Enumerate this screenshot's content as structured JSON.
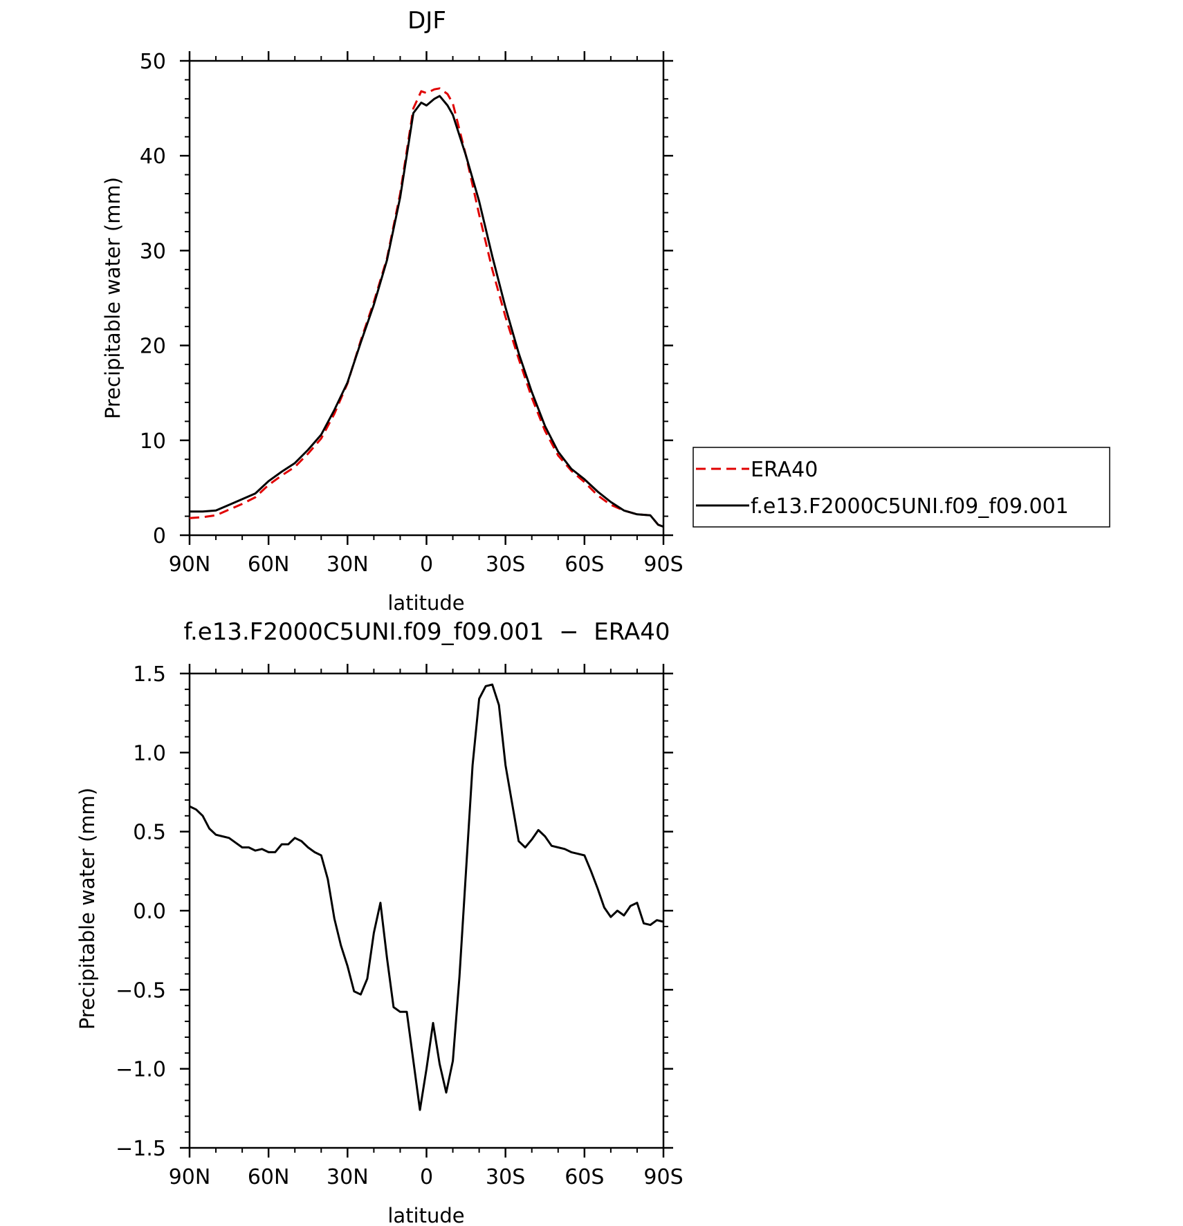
{
  "chart_data": [
    {
      "type": "line",
      "title": "DJF",
      "xlabel": "latitude",
      "ylabel": "Precipitable water (mm)",
      "xlim": [
        90,
        -90
      ],
      "ylim": [
        0,
        50
      ],
      "x_ticks": [
        90,
        60,
        30,
        0,
        -30,
        -60,
        -90
      ],
      "x_tick_labels": [
        "90N",
        "60N",
        "30N",
        "0",
        "30S",
        "60S",
        "90S"
      ],
      "y_ticks": [
        0,
        10,
        20,
        30,
        40,
        50
      ],
      "y_tick_labels": [
        "0",
        "10",
        "20",
        "30",
        "40",
        "50"
      ],
      "legend_position": "right",
      "series": [
        {
          "name": "ERA40",
          "color": "#e00000",
          "dash": "dashed",
          "x": [
            90,
            85,
            80,
            75,
            70,
            65,
            60,
            55,
            50,
            45,
            40,
            35,
            30,
            25,
            20,
            15,
            10,
            5,
            2,
            0,
            -3,
            -5,
            -8,
            -10,
            -15,
            -20,
            -25,
            -30,
            -35,
            -40,
            -45,
            -50,
            -55,
            -60,
            -65,
            -70,
            -75,
            -80,
            -85,
            -88,
            -90
          ],
          "y": [
            1.8,
            1.9,
            2.1,
            2.7,
            3.3,
            4.0,
            5.3,
            6.3,
            7.2,
            8.6,
            10.2,
            12.8,
            16.0,
            20.5,
            24.6,
            29.2,
            36.0,
            45.0,
            46.8,
            46.6,
            47.0,
            47.1,
            46.5,
            45.5,
            40.0,
            33.8,
            28.0,
            23.0,
            18.6,
            14.5,
            11.0,
            8.4,
            6.8,
            5.6,
            4.2,
            3.2,
            2.6,
            2.2,
            2.1,
            1.1,
            0.9
          ]
        },
        {
          "name": "f.e13.F2000C5UNI.f09_f09.001",
          "color": "#000000",
          "dash": "solid",
          "x": [
            90,
            85,
            80,
            75,
            70,
            65,
            60,
            55,
            50,
            45,
            40,
            35,
            30,
            25,
            20,
            15,
            10,
            5,
            2,
            0,
            -3,
            -5,
            -8,
            -10,
            -15,
            -20,
            -25,
            -30,
            -35,
            -40,
            -45,
            -50,
            -55,
            -60,
            -65,
            -70,
            -75,
            -80,
            -85,
            -88,
            -90
          ],
          "y": [
            2.5,
            2.5,
            2.6,
            3.2,
            3.8,
            4.4,
            5.7,
            6.7,
            7.6,
            9.0,
            10.6,
            13.2,
            16.1,
            20.3,
            24.3,
            29.0,
            35.6,
            44.5,
            45.6,
            45.3,
            46.0,
            46.3,
            45.3,
            44.3,
            40.0,
            35.2,
            29.4,
            24.0,
            19.2,
            15.1,
            11.5,
            8.8,
            7.0,
            5.9,
            4.6,
            3.5,
            2.6,
            2.2,
            2.1,
            1.1,
            0.9
          ]
        }
      ]
    },
    {
      "type": "line",
      "title": "f.e13.F2000C5UNI.f09_f09.001  −  ERA40",
      "xlabel": "latitude",
      "ylabel": "Precipitable water (mm)",
      "xlim": [
        90,
        -90
      ],
      "ylim": [
        -1.5,
        1.5
      ],
      "x_ticks": [
        90,
        60,
        30,
        0,
        -30,
        -60,
        -90
      ],
      "x_tick_labels": [
        "90N",
        "60N",
        "30N",
        "0",
        "30S",
        "60S",
        "90S"
      ],
      "y_ticks": [
        1.5,
        1.0,
        0.5,
        0.0,
        -0.5,
        -1.0,
        -1.5
      ],
      "y_tick_labels": [
        "1.5",
        "1.0",
        "0.5",
        "0.0",
        "−0.5",
        "−1.0",
        "−1.5"
      ],
      "series": [
        {
          "color": "#000000",
          "dash": "solid",
          "x": [
            90,
            87.5,
            85,
            82.5,
            80,
            77.5,
            75,
            72.5,
            70,
            67.5,
            65,
            62.5,
            60,
            57.5,
            55,
            52.5,
            50,
            47.5,
            45,
            42.5,
            40,
            37.5,
            35,
            32.5,
            30,
            27.5,
            25,
            22.5,
            20,
            17.5,
            15,
            12.5,
            10,
            7.5,
            5,
            2.5,
            0,
            -2.5,
            -5,
            -7.5,
            -10,
            -12.5,
            -15,
            -17.5,
            -20,
            -22.5,
            -25,
            -27.5,
            -30,
            -32.5,
            -35,
            -37.5,
            -40,
            -42.5,
            -45,
            -47.5,
            -50,
            -52.5,
            -55,
            -57.5,
            -60,
            -62.5,
            -65,
            -67.5,
            -70,
            -72.5,
            -75,
            -77.5,
            -80,
            -82.5,
            -85,
            -87.5,
            -90
          ],
          "y": [
            0.66,
            0.64,
            0.6,
            0.52,
            0.48,
            0.47,
            0.46,
            0.43,
            0.4,
            0.4,
            0.38,
            0.39,
            0.37,
            0.37,
            0.42,
            0.42,
            0.46,
            0.44,
            0.4,
            0.37,
            0.35,
            0.2,
            -0.05,
            -0.22,
            -0.35,
            -0.51,
            -0.53,
            -0.43,
            -0.14,
            0.05,
            -0.3,
            -0.61,
            -0.64,
            -0.64,
            -0.95,
            -1.26,
            -1.0,
            -0.71,
            -0.97,
            -1.15,
            -0.95,
            -0.42,
            0.25,
            0.92,
            1.34,
            1.42,
            1.43,
            1.3,
            0.92,
            0.68,
            0.44,
            0.4,
            0.45,
            0.51,
            0.47,
            0.41,
            0.4,
            0.39,
            0.37,
            0.36,
            0.35,
            0.25,
            0.14,
            0.02,
            -0.04,
            0.0,
            -0.03,
            0.03,
            0.05,
            -0.08,
            -0.09,
            -0.06,
            -0.07
          ]
        }
      ]
    }
  ]
}
